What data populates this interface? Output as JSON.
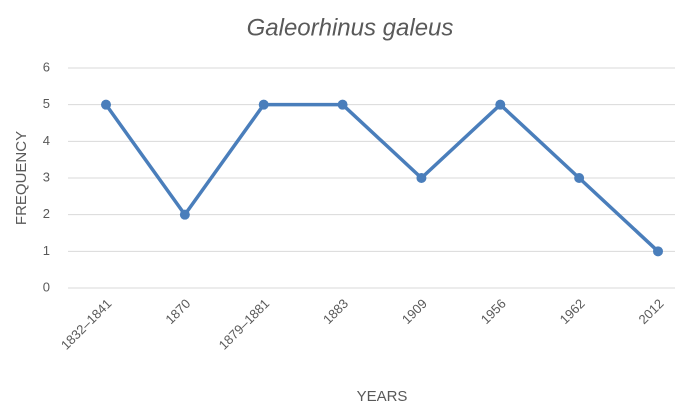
{
  "chart_data": {
    "type": "line",
    "title": "Galeorhinus galeus",
    "x_label": "YEARS",
    "y_label": "FREQUENCY",
    "categories": [
      "1832–1841",
      "1870",
      "1879–1881",
      "1883",
      "1909",
      "1956",
      "1962",
      "2012"
    ],
    "series": [
      {
        "name": "Galeorhinus galeus",
        "color": "#4a7ebb",
        "values": [
          5,
          2,
          5,
          5,
          3,
          5,
          3,
          1
        ]
      }
    ],
    "ylim": [
      0,
      6
    ],
    "yticks": [
      0,
      1,
      2,
      3,
      4,
      5,
      6
    ],
    "grid": true
  }
}
